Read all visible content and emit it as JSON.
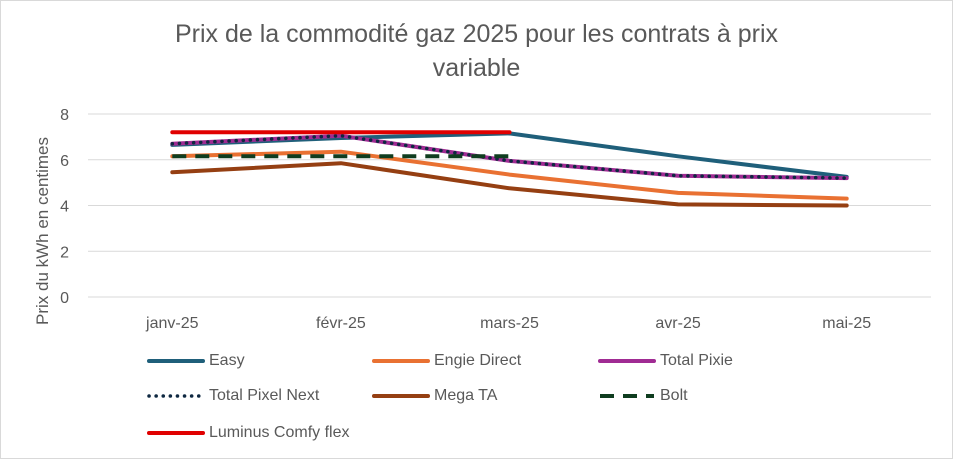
{
  "chart_data": {
    "type": "line",
    "title": "Prix de la commodité gaz 2025 pour les contrats à prix variable",
    "title_lines": [
      "Prix de la commodité gaz 2025 pour les contrats à prix",
      "variable"
    ],
    "ylabel": "Prix du kWh en centimes",
    "xlabel": "",
    "categories": [
      "janv-25",
      "févr-25",
      "mars-25",
      "avr-25",
      "mai-25"
    ],
    "ylim": [
      0,
      8
    ],
    "yticks": [
      0,
      2,
      4,
      6,
      8
    ],
    "grid": true,
    "legend_position": "bottom",
    "series": [
      {
        "name": "Easy",
        "color": "#1f5f7a",
        "style": "solid",
        "values": [
          6.65,
          6.95,
          7.15,
          6.15,
          5.25
        ]
      },
      {
        "name": "Engie Direct",
        "color": "#e97132",
        "style": "solid",
        "values": [
          6.15,
          6.35,
          5.35,
          4.55,
          4.3
        ]
      },
      {
        "name": "Total Pixie",
        "color": "#a02b93",
        "style": "solid",
        "values": [
          6.7,
          7.05,
          5.95,
          5.3,
          5.2
        ]
      },
      {
        "name": "Total Pixel Next",
        "color": "#0e2841",
        "style": "dotted",
        "values": [
          6.7,
          7.05,
          5.95,
          5.3,
          5.2
        ]
      },
      {
        "name": "Mega TA",
        "color": "#953f12",
        "style": "solid",
        "values": [
          5.45,
          5.85,
          4.75,
          4.05,
          4.0
        ]
      },
      {
        "name": "Bolt",
        "color": "#0f3d1f",
        "style": "dashed",
        "values": [
          6.15,
          6.15,
          6.15,
          null,
          null
        ]
      },
      {
        "name": "Luminus Comfy flex",
        "color": "#e00000",
        "style": "solid",
        "values": [
          7.2,
          7.2,
          7.2,
          null,
          null
        ]
      }
    ]
  }
}
